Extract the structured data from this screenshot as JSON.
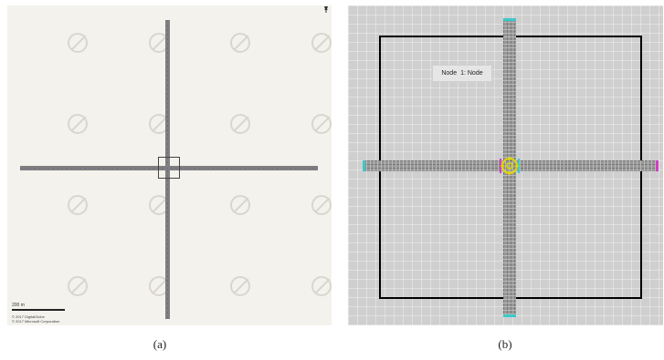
{
  "panel_a": {
    "scale_label": "200 m",
    "copyright_1": "© 2017 DigitalGlobe",
    "copyright_2": "© 2017 Microsoft Corporation",
    "caption": "(a)"
  },
  "panel_b": {
    "tooltip": {
      "label": "Node",
      "value": "1: Node"
    },
    "caption": "(b)"
  },
  "colors": {
    "map_background": "#f3f2ec",
    "road": "#7f7f7f",
    "sim_background": "#cfcfcf",
    "node_marker": "#e0d800",
    "lane_end_cyan": "#3cc8c8",
    "lane_end_magenta": "#d040c0"
  },
  "icons": [
    "pin-icon",
    "no-image-watermark-icon",
    "node-marker-icon"
  ]
}
